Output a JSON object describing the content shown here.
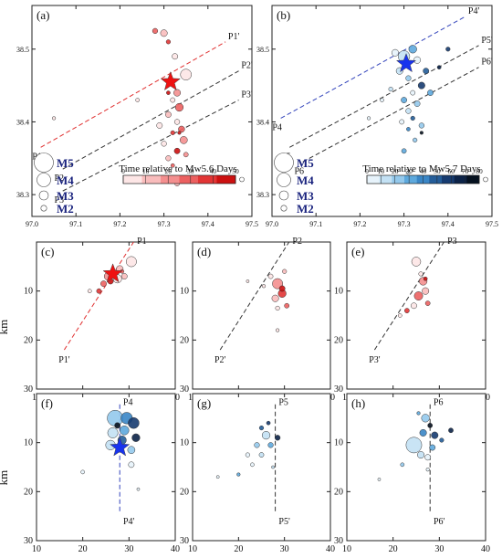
{
  "figure": {
    "panel_labels": [
      "(a)",
      "(b)",
      "(c)",
      "(d)",
      "(e)",
      "(f)",
      "(g)",
      "(h)"
    ],
    "map_lon_ticks": [
      "97.0",
      "97.1",
      "97.2",
      "97.3",
      "97.4",
      "97.5"
    ],
    "map_lat_ticks": [
      "38.5",
      "38.4",
      "38.3"
    ],
    "sec_x_ticks": [
      "10",
      "20",
      "30",
      "40"
    ],
    "sec_y_ticks": [
      "10",
      "20",
      "30"
    ],
    "depth_label": "km",
    "mag_legend": [
      "M5",
      "M4",
      "M3",
      "M2"
    ],
    "colorbar_a": {
      "title": "Time relative to Mw5.6 Days",
      "ticks": [
        "0",
        "10",
        "20",
        "30",
        "40",
        "50"
      ]
    },
    "colorbar_b": {
      "title": "Time relative to Mw5.7 Days",
      "ticks": [
        "0",
        "10",
        "20",
        "30",
        "40",
        "50",
        "60",
        "70",
        "80"
      ]
    },
    "profile_labels_a": [
      "P1",
      "P1'",
      "P2",
      "P2'",
      "P3",
      "P3'"
    ],
    "profile_labels_b": [
      "P4",
      "P4'",
      "P5",
      "P5'",
      "P6",
      "P6'"
    ],
    "colors": {
      "red_scale": [
        "#fde6e6",
        "#f9bcbc",
        "#f48f8f",
        "#ec6060",
        "#e23535",
        "#cc1010"
      ],
      "blue_scale": [
        "#e7f3fb",
        "#c3e1f4",
        "#94c9ec",
        "#5ea9dd",
        "#3a86c6",
        "#245d99",
        "#163b70",
        "#0c2348",
        "#05111f"
      ],
      "star_red": "#ee1111",
      "star_blue": "#1833ee",
      "legend_text": "#1a237e"
    }
  },
  "chart_data": [
    {
      "panel": "(a)",
      "type": "scatter",
      "xlim": [
        97.0,
        97.5
      ],
      "ylim": [
        38.27,
        38.56
      ],
      "mainshock": {
        "x": 97.315,
        "y": 38.455,
        "marker": "red-star"
      },
      "profiles": [
        {
          "start": "P1",
          "end": "P1'",
          "x": [
            97.02,
            97.44
          ],
          "y": [
            38.365,
            38.51
          ],
          "color": "#e03030"
        },
        {
          "start": "P2",
          "end": "P2'",
          "x": [
            97.07,
            97.47
          ],
          "y": [
            38.335,
            38.47
          ],
          "color": "#333333"
        },
        {
          "start": "P3",
          "end": "P3'",
          "x": [
            97.07,
            97.47
          ],
          "y": [
            38.305,
            38.43
          ],
          "color": "#333333"
        }
      ],
      "events": [
        {
          "x": 97.28,
          "y": 38.525,
          "m": 1.9,
          "t": 25
        },
        {
          "x": 97.3,
          "y": 38.522,
          "m": 2.2,
          "t": 15
        },
        {
          "x": 97.31,
          "y": 38.51,
          "m": 1.7,
          "t": 35
        },
        {
          "x": 97.325,
          "y": 38.49,
          "m": 2.0,
          "t": 5
        },
        {
          "x": 97.35,
          "y": 38.465,
          "m": 2.9,
          "t": 3
        },
        {
          "x": 97.33,
          "y": 38.44,
          "m": 2.2,
          "t": 20
        },
        {
          "x": 97.32,
          "y": 38.43,
          "m": 1.8,
          "t": 8
        },
        {
          "x": 97.335,
          "y": 38.42,
          "m": 2.4,
          "t": 30
        },
        {
          "x": 97.31,
          "y": 38.41,
          "m": 2.0,
          "t": 12
        },
        {
          "x": 97.33,
          "y": 38.4,
          "m": 1.9,
          "t": 2
        },
        {
          "x": 97.34,
          "y": 38.39,
          "m": 2.1,
          "t": 28
        },
        {
          "x": 97.32,
          "y": 38.385,
          "m": 1.7,
          "t": 40
        },
        {
          "x": 97.345,
          "y": 38.375,
          "m": 2.3,
          "t": 18
        },
        {
          "x": 97.3,
          "y": 38.37,
          "m": 1.9,
          "t": 6
        },
        {
          "x": 97.33,
          "y": 38.36,
          "m": 2.0,
          "t": 45
        },
        {
          "x": 97.35,
          "y": 38.355,
          "m": 1.8,
          "t": 22
        },
        {
          "x": 97.31,
          "y": 38.35,
          "m": 1.9,
          "t": 10
        },
        {
          "x": 97.32,
          "y": 38.34,
          "m": 1.6,
          "t": 33
        },
        {
          "x": 97.33,
          "y": 38.315,
          "m": 1.8,
          "t": 15
        },
        {
          "x": 97.29,
          "y": 38.395,
          "m": 2.0,
          "t": 0
        },
        {
          "x": 97.24,
          "y": 38.43,
          "m": 1.6,
          "t": 4
        },
        {
          "x": 97.05,
          "y": 38.405,
          "m": 1.5,
          "t": 2
        },
        {
          "x": 97.31,
          "y": 38.44,
          "m": 1.6,
          "t": 50
        },
        {
          "x": 97.335,
          "y": 38.385,
          "m": 1.5,
          "t": 48
        }
      ],
      "legend_text": [
        "M5",
        "M4",
        "M3",
        "M2"
      ]
    },
    {
      "panel": "(b)",
      "type": "scatter",
      "xlim": [
        97.0,
        97.5
      ],
      "ylim": [
        38.27,
        38.56
      ],
      "mainshock": {
        "x": 97.305,
        "y": 38.48,
        "marker": "blue-star"
      },
      "profiles": [
        {
          "start": "P4",
          "end": "P4'",
          "x": [
            97.02,
            97.44
          ],
          "y": [
            38.405,
            38.545
          ],
          "color": "#3344bb"
        },
        {
          "start": "P5",
          "end": "P5'",
          "x": [
            97.04,
            97.47
          ],
          "y": [
            38.365,
            38.505
          ],
          "color": "#333333"
        },
        {
          "start": "P6",
          "end": "P6'",
          "x": [
            97.07,
            97.47
          ],
          "y": [
            38.345,
            38.475
          ],
          "color": "#333333"
        }
      ],
      "events": [
        {
          "x": 97.3,
          "y": 38.49,
          "m": 3.0,
          "t": 10
        },
        {
          "x": 97.32,
          "y": 38.5,
          "m": 2.4,
          "t": 30
        },
        {
          "x": 97.33,
          "y": 38.485,
          "m": 2.2,
          "t": 5
        },
        {
          "x": 97.35,
          "y": 38.47,
          "m": 2.0,
          "t": 45
        },
        {
          "x": 97.29,
          "y": 38.47,
          "m": 2.2,
          "t": 15
        },
        {
          "x": 97.31,
          "y": 38.46,
          "m": 1.9,
          "t": 20
        },
        {
          "x": 97.34,
          "y": 38.45,
          "m": 2.2,
          "t": 60
        },
        {
          "x": 97.32,
          "y": 38.44,
          "m": 1.8,
          "t": 8
        },
        {
          "x": 97.3,
          "y": 38.43,
          "m": 2.0,
          "t": 35
        },
        {
          "x": 97.33,
          "y": 38.425,
          "m": 2.0,
          "t": 25
        },
        {
          "x": 97.31,
          "y": 38.415,
          "m": 1.9,
          "t": 12
        },
        {
          "x": 97.32,
          "y": 38.405,
          "m": 1.7,
          "t": 50
        },
        {
          "x": 97.295,
          "y": 38.4,
          "m": 1.8,
          "t": 3
        },
        {
          "x": 97.34,
          "y": 38.395,
          "m": 1.9,
          "t": 18
        },
        {
          "x": 97.31,
          "y": 38.39,
          "m": 1.6,
          "t": 40
        },
        {
          "x": 97.325,
          "y": 38.375,
          "m": 1.7,
          "t": 22
        },
        {
          "x": 97.3,
          "y": 38.36,
          "m": 1.8,
          "t": 28
        },
        {
          "x": 97.34,
          "y": 38.385,
          "m": 1.5,
          "t": 80
        },
        {
          "x": 97.4,
          "y": 38.5,
          "m": 1.7,
          "t": 55
        },
        {
          "x": 97.38,
          "y": 38.475,
          "m": 1.6,
          "t": 70
        },
        {
          "x": 97.27,
          "y": 38.445,
          "m": 1.7,
          "t": 9
        },
        {
          "x": 97.25,
          "y": 38.43,
          "m": 1.6,
          "t": 4
        },
        {
          "x": 97.31,
          "y": 38.33,
          "m": 1.5,
          "t": 6
        },
        {
          "x": 97.22,
          "y": 38.405,
          "m": 1.5,
          "t": 2
        },
        {
          "x": 97.28,
          "y": 38.495,
          "m": 2.2,
          "t": 2
        },
        {
          "x": 97.36,
          "y": 38.44,
          "m": 2.0,
          "t": 33
        }
      ],
      "legend_text": [
        "M5",
        "M4",
        "M3",
        "M2"
      ]
    },
    {
      "panel": "(c)",
      "type": "scatter",
      "xlim": [
        10,
        40
      ],
      "ylim": [
        30,
        0
      ],
      "profile": {
        "top": "P1",
        "bottom": "P1'",
        "x": [
          16,
          31
        ],
        "y": [
          22,
          0
        ],
        "color": "#e03030"
      },
      "mainshock": {
        "x": 26.5,
        "y": 6.5,
        "marker": "red-star"
      },
      "events": [
        {
          "x": 30.5,
          "y": 4,
          "m": 2.8,
          "t": 5
        },
        {
          "x": 28,
          "y": 5.5,
          "m": 2.2,
          "t": 15
        },
        {
          "x": 25.5,
          "y": 7,
          "m": 2.4,
          "t": 20
        },
        {
          "x": 27.5,
          "y": 7.5,
          "m": 2.5,
          "t": 3
        },
        {
          "x": 24.5,
          "y": 8.5,
          "m": 2.0,
          "t": 30
        },
        {
          "x": 29,
          "y": 7,
          "m": 2.0,
          "t": 10
        },
        {
          "x": 26,
          "y": 8,
          "m": 2.0,
          "t": 45
        },
        {
          "x": 23.5,
          "y": 10,
          "m": 1.8,
          "t": 38
        },
        {
          "x": 21.5,
          "y": 10,
          "m": 1.6,
          "t": 4
        },
        {
          "x": 28.5,
          "y": 6,
          "m": 1.6,
          "t": 25
        }
      ]
    },
    {
      "panel": "(d)",
      "type": "scatter",
      "xlim": [
        10,
        40
      ],
      "ylim": [
        30,
        0
      ],
      "profile": {
        "top": "P2",
        "bottom": "P2'",
        "x": [
          16,
          31
        ],
        "y": [
          22,
          0
        ],
        "color": "#333333"
      },
      "events": [
        {
          "x": 28.5,
          "y": 8.5,
          "m": 2.8,
          "t": 20
        },
        {
          "x": 29.5,
          "y": 10.5,
          "m": 2.4,
          "t": 35
        },
        {
          "x": 28,
          "y": 11.5,
          "m": 2.2,
          "t": 10
        },
        {
          "x": 27,
          "y": 7,
          "m": 1.8,
          "t": 5
        },
        {
          "x": 30,
          "y": 6,
          "m": 1.7,
          "t": 15
        },
        {
          "x": 30.5,
          "y": 13,
          "m": 1.8,
          "t": 25
        },
        {
          "x": 28.5,
          "y": 13.5,
          "m": 1.7,
          "t": 2
        },
        {
          "x": 25.5,
          "y": 9,
          "m": 1.5,
          "t": 3
        },
        {
          "x": 22,
          "y": 8,
          "m": 1.4,
          "t": 1
        },
        {
          "x": 28.5,
          "y": 18,
          "m": 1.5,
          "t": 2
        },
        {
          "x": 29.5,
          "y": 9.5,
          "m": 2.0,
          "t": 45
        }
      ]
    },
    {
      "panel": "(e)",
      "type": "scatter",
      "xlim": [
        10,
        40
      ],
      "ylim": [
        30,
        0
      ],
      "profile": {
        "top": "P3",
        "bottom": "P3'",
        "x": [
          16,
          31
        ],
        "y": [
          22,
          0
        ],
        "color": "#333333"
      },
      "events": [
        {
          "x": 25,
          "y": 4,
          "m": 2.6,
          "t": 2
        },
        {
          "x": 26.5,
          "y": 8,
          "m": 2.4,
          "t": 20
        },
        {
          "x": 25.5,
          "y": 11,
          "m": 2.5,
          "t": 30
        },
        {
          "x": 27,
          "y": 10,
          "m": 2.2,
          "t": 12
        },
        {
          "x": 24.5,
          "y": 13,
          "m": 2.0,
          "t": 8
        },
        {
          "x": 23,
          "y": 14,
          "m": 1.8,
          "t": 40
        },
        {
          "x": 27.5,
          "y": 12.5,
          "m": 1.8,
          "t": 25
        },
        {
          "x": 26,
          "y": 6.5,
          "m": 1.7,
          "t": 5
        },
        {
          "x": 21.5,
          "y": 15,
          "m": 1.6,
          "t": 3
        },
        {
          "x": 27,
          "y": 7.5,
          "m": 1.6,
          "t": 45
        }
      ]
    },
    {
      "panel": "(f)",
      "type": "scatter",
      "xlim": [
        10,
        40
      ],
      "ylim": [
        30,
        0
      ],
      "profile": {
        "top": "P4",
        "bottom": "P4'",
        "x": [
          28,
          28
        ],
        "y": [
          24,
          2
        ],
        "color": "#3344bb"
      },
      "mainshock": {
        "x": 28,
        "y": 11,
        "marker": "blue-star"
      },
      "events": [
        {
          "x": 27,
          "y": 5,
          "m": 3.6,
          "t": 20
        },
        {
          "x": 29.5,
          "y": 5,
          "m": 3.0,
          "t": 40
        },
        {
          "x": 31,
          "y": 6,
          "m": 2.9,
          "t": 60
        },
        {
          "x": 26.5,
          "y": 8,
          "m": 2.8,
          "t": 10
        },
        {
          "x": 29,
          "y": 7.5,
          "m": 2.6,
          "t": 30
        },
        {
          "x": 31.5,
          "y": 9,
          "m": 2.4,
          "t": 70
        },
        {
          "x": 26,
          "y": 10.5,
          "m": 2.7,
          "t": 15
        },
        {
          "x": 28.5,
          "y": 9.5,
          "m": 2.5,
          "t": 50
        },
        {
          "x": 30.5,
          "y": 11.5,
          "m": 2.3,
          "t": 25
        },
        {
          "x": 30.5,
          "y": 14.5,
          "m": 2.0,
          "t": 5
        },
        {
          "x": 20,
          "y": 16,
          "m": 1.6,
          "t": 8
        },
        {
          "x": 32,
          "y": 19.5,
          "m": 1.3,
          "t": 2
        },
        {
          "x": 27.5,
          "y": 6.5,
          "m": 2.0,
          "t": 80
        }
      ]
    },
    {
      "panel": "(g)",
      "type": "scatter",
      "xlim": [
        10,
        40
      ],
      "ylim": [
        30,
        0
      ],
      "profile": {
        "top": "P5",
        "bottom": "P5'",
        "x": [
          28,
          28
        ],
        "y": [
          24,
          2
        ],
        "color": "#333333"
      },
      "events": [
        {
          "x": 26,
          "y": 8.5,
          "m": 2.4,
          "t": 15
        },
        {
          "x": 28.5,
          "y": 9,
          "m": 1.9,
          "t": 70
        },
        {
          "x": 27,
          "y": 10.5,
          "m": 1.9,
          "t": 35
        },
        {
          "x": 24,
          "y": 10.5,
          "m": 1.9,
          "t": 20
        },
        {
          "x": 25,
          "y": 12.5,
          "m": 1.8,
          "t": 10
        },
        {
          "x": 22,
          "y": 12.5,
          "m": 1.7,
          "t": 5
        },
        {
          "x": 23,
          "y": 14.5,
          "m": 1.6,
          "t": 8
        },
        {
          "x": 25,
          "y": 7,
          "m": 1.7,
          "t": 45
        },
        {
          "x": 20,
          "y": 16.5,
          "m": 1.5,
          "t": 30
        },
        {
          "x": 15.5,
          "y": 17,
          "m": 1.3,
          "t": 2
        },
        {
          "x": 27.5,
          "y": 15,
          "m": 1.4,
          "t": 12
        },
        {
          "x": 26.5,
          "y": 6,
          "m": 1.6,
          "t": 55
        }
      ]
    },
    {
      "panel": "(h)",
      "type": "scatter",
      "xlim": [
        10,
        40
      ],
      "ylim": [
        30,
        0
      ],
      "profile": {
        "top": "P6",
        "bottom": "P6'",
        "x": [
          28,
          28
        ],
        "y": [
          24,
          2
        ],
        "color": "#333333"
      },
      "events": [
        {
          "x": 24.5,
          "y": 10.5,
          "m": 3.6,
          "t": 10
        },
        {
          "x": 27,
          "y": 5,
          "m": 2.4,
          "t": 20
        },
        {
          "x": 26.5,
          "y": 8,
          "m": 2.2,
          "t": 40
        },
        {
          "x": 29,
          "y": 8.5,
          "m": 2.2,
          "t": 60
        },
        {
          "x": 26,
          "y": 12.5,
          "m": 2.2,
          "t": 15
        },
        {
          "x": 28.5,
          "y": 11,
          "m": 2.0,
          "t": 30
        },
        {
          "x": 32.5,
          "y": 7.5,
          "m": 1.8,
          "t": 70
        },
        {
          "x": 30.5,
          "y": 9.5,
          "m": 1.7,
          "t": 50
        },
        {
          "x": 27.5,
          "y": 13,
          "m": 2.0,
          "t": 5
        },
        {
          "x": 22,
          "y": 14.5,
          "m": 1.6,
          "t": 25
        },
        {
          "x": 17,
          "y": 17.5,
          "m": 1.3,
          "t": 3
        },
        {
          "x": 27.5,
          "y": 15.5,
          "m": 1.5,
          "t": 8
        },
        {
          "x": 28,
          "y": 6.5,
          "m": 1.8,
          "t": 80
        },
        {
          "x": 25.5,
          "y": 4,
          "m": 1.5,
          "t": 35
        }
      ]
    }
  ]
}
